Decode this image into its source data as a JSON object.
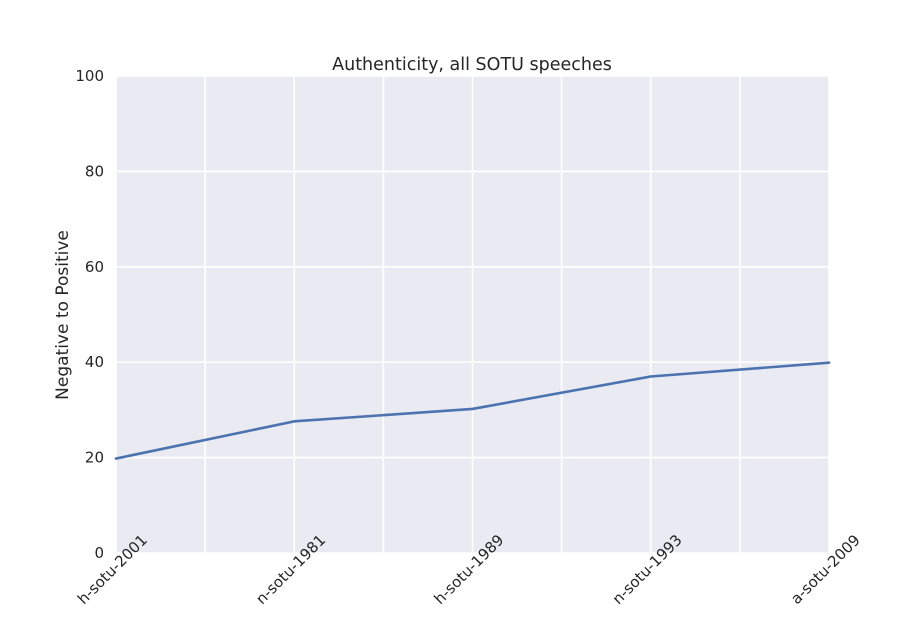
{
  "chart_data": {
    "type": "line",
    "title": "Authenticity, all SOTU speeches",
    "xlabel": "",
    "ylabel": "Negative to Positive",
    "categories": [
      "h-sotu-2001",
      "n-sotu-1981",
      "h-sotu-1989",
      "n-sotu-1993",
      "a-sotu-2009"
    ],
    "series": [
      {
        "values": [
          19.8,
          27.6,
          30.2,
          37.0,
          39.9
        ]
      }
    ],
    "ylim": [
      0,
      100
    ],
    "yticks": [
      0,
      20,
      40,
      60,
      80,
      100
    ],
    "grid": true,
    "legend": "none",
    "colors": {
      "line": "#4c72b0",
      "plot_background": "#eaeaf2",
      "grid": "#ffffff",
      "text": "#262626"
    }
  }
}
